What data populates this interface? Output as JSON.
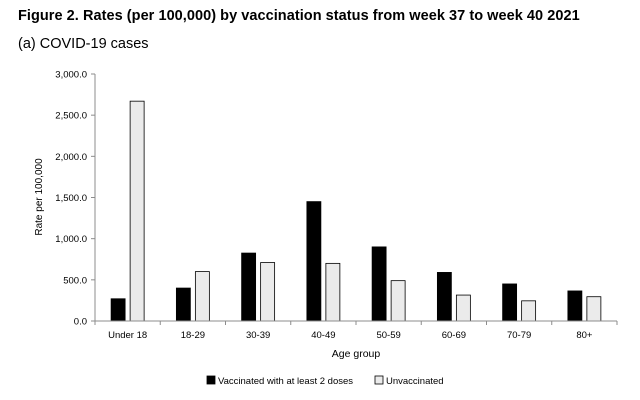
{
  "figure": {
    "title": "Figure 2. Rates (per 100,000) by vaccination status from week 37 to week 40 2021",
    "subtitle": "(a) COVID-19 cases"
  },
  "colors": {
    "vaccinated": "#000000",
    "unvaccinated": "#ebebeb",
    "axis": "#8c8c8c",
    "bar_outline": "#000000"
  },
  "chart_data": {
    "type": "bar",
    "title": "(a) COVID-19 cases",
    "xlabel": "Age group",
    "ylabel": "Rate per 100,000",
    "categories": [
      "Under 18",
      "18-29",
      "30-39",
      "40-49",
      "50-59",
      "60-69",
      "70-79",
      "80+"
    ],
    "series": [
      {
        "name": "Vaccinated with at least 2 doses",
        "color": "#000000",
        "values": [
          270,
          400,
          825,
          1450,
          900,
          590,
          450,
          365
        ]
      },
      {
        "name": "Unvaccinated",
        "color": "#ebebeb",
        "values": [
          2670,
          600,
          710,
          700,
          490,
          315,
          245,
          295
        ]
      }
    ],
    "ylim": [
      0,
      3000
    ],
    "yticks": [
      0,
      500,
      1000,
      1500,
      2000,
      2500,
      3000
    ],
    "ytick_labels": [
      "0.0",
      "500.0",
      "1,000.0",
      "1,500.0",
      "2,000.0",
      "2,500.0",
      "3,000.0"
    ],
    "grid": false,
    "legend_position": "bottom"
  }
}
